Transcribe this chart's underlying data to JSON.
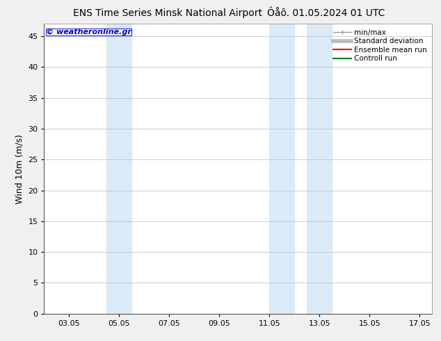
{
  "title_left": "ENS Time Series Minsk National Airport",
  "title_right": "Ôåô. 01.05.2024 01 UTC",
  "ylabel": "Wind 10m (m/s)",
  "ylim": [
    0,
    47
  ],
  "yticks": [
    0,
    5,
    10,
    15,
    20,
    25,
    30,
    35,
    40,
    45
  ],
  "xtick_labels": [
    "03.05",
    "05.05",
    "07.05",
    "09.05",
    "11.05",
    "13.05",
    "15.05",
    "17.05"
  ],
  "xtick_positions": [
    3,
    5,
    7,
    9,
    11,
    13,
    15,
    17
  ],
  "xlim": [
    2.0,
    17.5
  ],
  "shaded_bands": [
    {
      "x_start": 4.5,
      "x_end": 5.5
    },
    {
      "x_start": 11.0,
      "x_end": 12.0
    },
    {
      "x_start": 12.5,
      "x_end": 13.5
    }
  ],
  "shaded_color": "#dbeaf7",
  "background_color": "#f0f0f0",
  "plot_bg_color": "#ffffff",
  "watermark_text": "© weatheronline.gr",
  "watermark_color": "#0000cc",
  "legend_items": [
    {
      "label": "min/max",
      "color": "#999999",
      "linestyle": "-",
      "linewidth": 1.0
    },
    {
      "label": "Standard deviation",
      "color": "#bbbbbb",
      "linestyle": "-",
      "linewidth": 4.0
    },
    {
      "label": "Ensemble mean run",
      "color": "#ff0000",
      "linestyle": "-",
      "linewidth": 1.5
    },
    {
      "label": "Controll run",
      "color": "#008800",
      "linestyle": "-",
      "linewidth": 1.5
    }
  ],
  "grid_color": "#bbbbbb",
  "grid_linewidth": 0.5,
  "title_fontsize": 10,
  "tick_fontsize": 8,
  "ylabel_fontsize": 9,
  "watermark_fontsize": 8,
  "legend_fontsize": 7.5
}
